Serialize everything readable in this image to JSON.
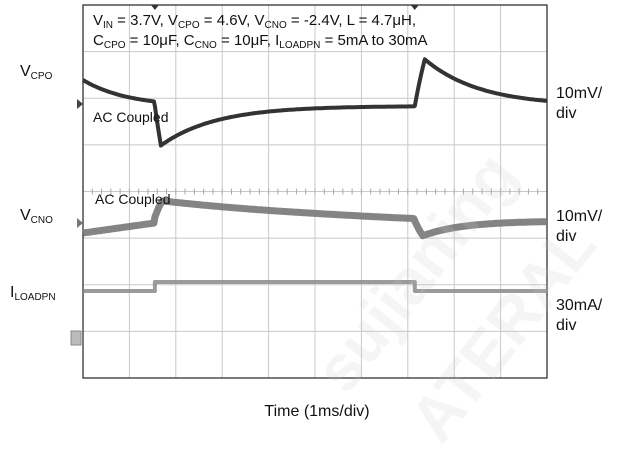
{
  "chart_data": {
    "type": "line",
    "title_line1": [
      {
        "t": "V"
      },
      {
        "s": "IN"
      },
      {
        "t": " = 3.7V, V"
      },
      {
        "s": "CPO"
      },
      {
        "t": " = 4.6V, V"
      },
      {
        "s": "CNO"
      },
      {
        "t": " = -2.4V, L = 4.7μH,"
      }
    ],
    "title_line2": [
      {
        "t": "C"
      },
      {
        "s": "CPO"
      },
      {
        "t": " = 10μF, C"
      },
      {
        "s": "CNO"
      },
      {
        "t": " = 10μF, I"
      },
      {
        "s": "LOADPN"
      },
      {
        "t": " = 5mA to 30mA"
      }
    ],
    "xlabel": "Time (1ms/div)",
    "x_divisions": 10,
    "y_divisions": 8,
    "grid": true,
    "series": [
      {
        "name": "V_CPO",
        "label_main": "V",
        "label_sub": "CPO",
        "scale_top": "10mV/",
        "scale_bottom": "div",
        "coupling": "AC Coupled",
        "color": "#333333"
      },
      {
        "name": "V_CNO",
        "label_main": "V",
        "label_sub": "CNO",
        "scale_top": "10mV/",
        "scale_bottom": "div",
        "coupling": "AC Coupled",
        "color": "#777777"
      },
      {
        "name": "I_LOADPN",
        "label_main": "I",
        "label_sub": "LOADPN",
        "scale_top": "30mA/",
        "scale_bottom": "div",
        "low": "5mA",
        "high": "30mA",
        "color": "#8a8a8a"
      }
    ],
    "load_step_on_div": 1.55,
    "load_step_off_div": 7.15
  },
  "watermark": {
    "line1": "sujianing",
    "line2": "ATERAL"
  }
}
